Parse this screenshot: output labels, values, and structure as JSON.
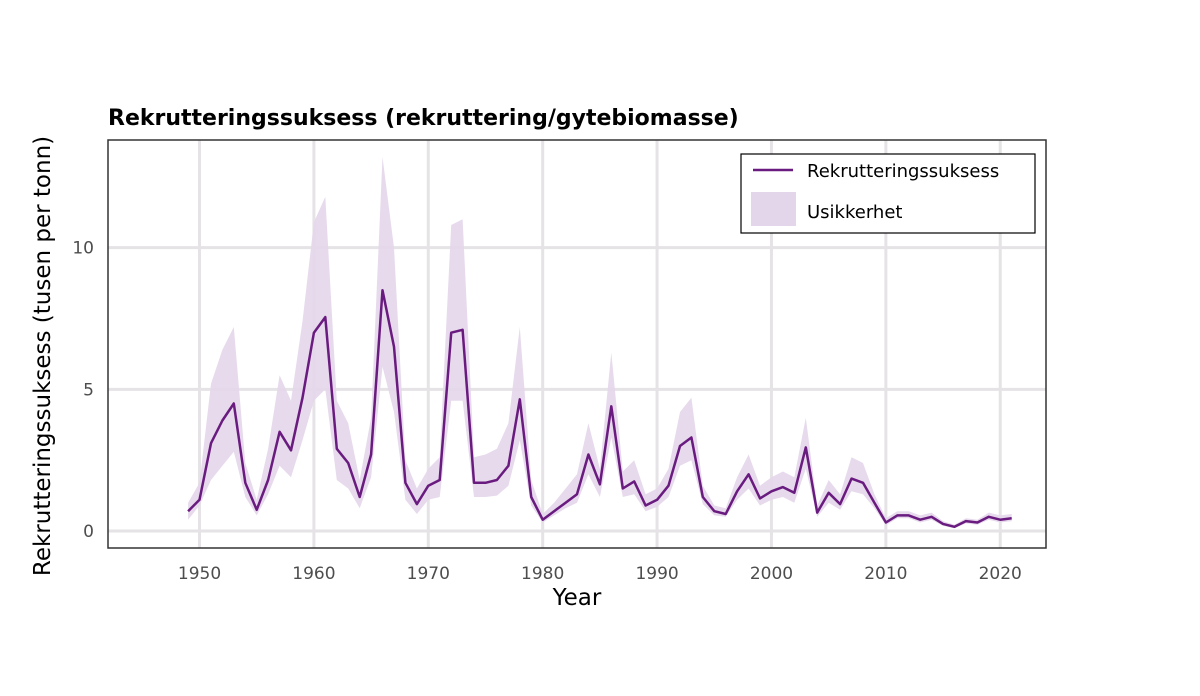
{
  "chart_data": {
    "type": "line",
    "title": "Rekrutteringssuksess (rekruttering/gytebiomasse)",
    "xlabel": "Year",
    "ylabel": "Rekrutteringssuksess (tusen per tonn)",
    "xlim": [
      1942,
      2024
    ],
    "ylim": [
      -0.6,
      13.8
    ],
    "xticks": [
      1950,
      1960,
      1970,
      1980,
      1990,
      2000,
      2010,
      2020
    ],
    "yticks": [
      0,
      5,
      10
    ],
    "grid": true,
    "legend_position": "top-right",
    "legend": [
      {
        "label": "Rekrutteringssuksess",
        "kind": "line",
        "color": "#6a1b7f"
      },
      {
        "label": "Usikkerhet",
        "kind": "band",
        "color": "#e3d6ea"
      }
    ],
    "x": [
      1949,
      1950,
      1951,
      1952,
      1953,
      1954,
      1955,
      1956,
      1957,
      1958,
      1959,
      1960,
      1961,
      1962,
      1963,
      1964,
      1965,
      1966,
      1967,
      1968,
      1969,
      1970,
      1971,
      1972,
      1973,
      1974,
      1975,
      1976,
      1977,
      1978,
      1979,
      1980,
      1981,
      1982,
      1983,
      1984,
      1985,
      1986,
      1987,
      1988,
      1989,
      1990,
      1991,
      1992,
      1993,
      1994,
      1995,
      1996,
      1997,
      1998,
      1999,
      2000,
      2001,
      2002,
      2003,
      2004,
      2005,
      2006,
      2007,
      2008,
      2009,
      2010,
      2011,
      2012,
      2013,
      2014,
      2015,
      2016,
      2017,
      2018,
      2019,
      2020,
      2021
    ],
    "series": [
      {
        "name": "Rekrutteringssuksess",
        "values": [
          0.7,
          1.1,
          3.1,
          3.9,
          4.5,
          1.7,
          0.75,
          1.8,
          3.5,
          2.85,
          4.7,
          7.0,
          7.55,
          2.9,
          2.4,
          1.2,
          2.7,
          8.5,
          6.5,
          1.7,
          0.95,
          1.6,
          1.8,
          7.0,
          7.1,
          1.7,
          1.7,
          1.8,
          2.3,
          4.65,
          1.2,
          0.4,
          0.7,
          1.0,
          1.3,
          2.7,
          1.65,
          4.4,
          1.5,
          1.75,
          0.9,
          1.1,
          1.6,
          3.0,
          3.3,
          1.2,
          0.7,
          0.6,
          1.4,
          2.0,
          1.15,
          1.4,
          1.55,
          1.35,
          2.95,
          0.65,
          1.35,
          0.95,
          1.85,
          1.7,
          1.0,
          0.3,
          0.55,
          0.55,
          0.4,
          0.5,
          0.25,
          0.15,
          0.35,
          0.3,
          0.5,
          0.4,
          0.45
        ]
      },
      {
        "name": "Usikkerhet (lower)",
        "values": [
          0.4,
          0.9,
          1.8,
          2.3,
          2.8,
          1.2,
          0.55,
          1.3,
          2.3,
          1.9,
          3.2,
          4.6,
          5.0,
          1.8,
          1.5,
          0.8,
          1.9,
          5.8,
          4.2,
          1.1,
          0.6,
          1.1,
          1.2,
          4.6,
          4.6,
          1.2,
          1.2,
          1.25,
          1.6,
          3.2,
          0.9,
          0.3,
          0.55,
          0.8,
          1.0,
          2.0,
          1.2,
          3.3,
          1.2,
          1.3,
          0.7,
          0.85,
          1.2,
          2.3,
          2.5,
          0.95,
          0.55,
          0.5,
          1.1,
          1.5,
          0.9,
          1.1,
          1.2,
          1.0,
          2.2,
          0.5,
          1.0,
          0.75,
          1.4,
          1.3,
          0.8,
          0.2,
          0.45,
          0.45,
          0.3,
          0.4,
          0.18,
          0.1,
          0.27,
          0.22,
          0.4,
          0.3,
          0.35
        ]
      },
      {
        "name": "Usikkerhet (upper)",
        "values": [
          1.0,
          1.7,
          5.2,
          6.4,
          7.2,
          2.4,
          1.1,
          2.9,
          5.5,
          4.6,
          7.4,
          10.9,
          11.8,
          4.6,
          3.8,
          1.8,
          4.0,
          13.2,
          10.0,
          2.5,
          1.5,
          2.2,
          2.6,
          10.8,
          11.0,
          2.6,
          2.7,
          2.9,
          3.8,
          7.2,
          1.8,
          0.6,
          1.0,
          1.5,
          2.0,
          3.8,
          2.2,
          6.3,
          2.1,
          2.5,
          1.3,
          1.5,
          2.2,
          4.2,
          4.7,
          1.6,
          0.9,
          0.8,
          1.9,
          2.7,
          1.6,
          1.9,
          2.1,
          1.9,
          4.0,
          0.9,
          1.8,
          1.3,
          2.6,
          2.4,
          1.3,
          0.45,
          0.7,
          0.7,
          0.55,
          0.65,
          0.35,
          0.22,
          0.45,
          0.4,
          0.65,
          0.55,
          0.6
        ]
      }
    ]
  }
}
